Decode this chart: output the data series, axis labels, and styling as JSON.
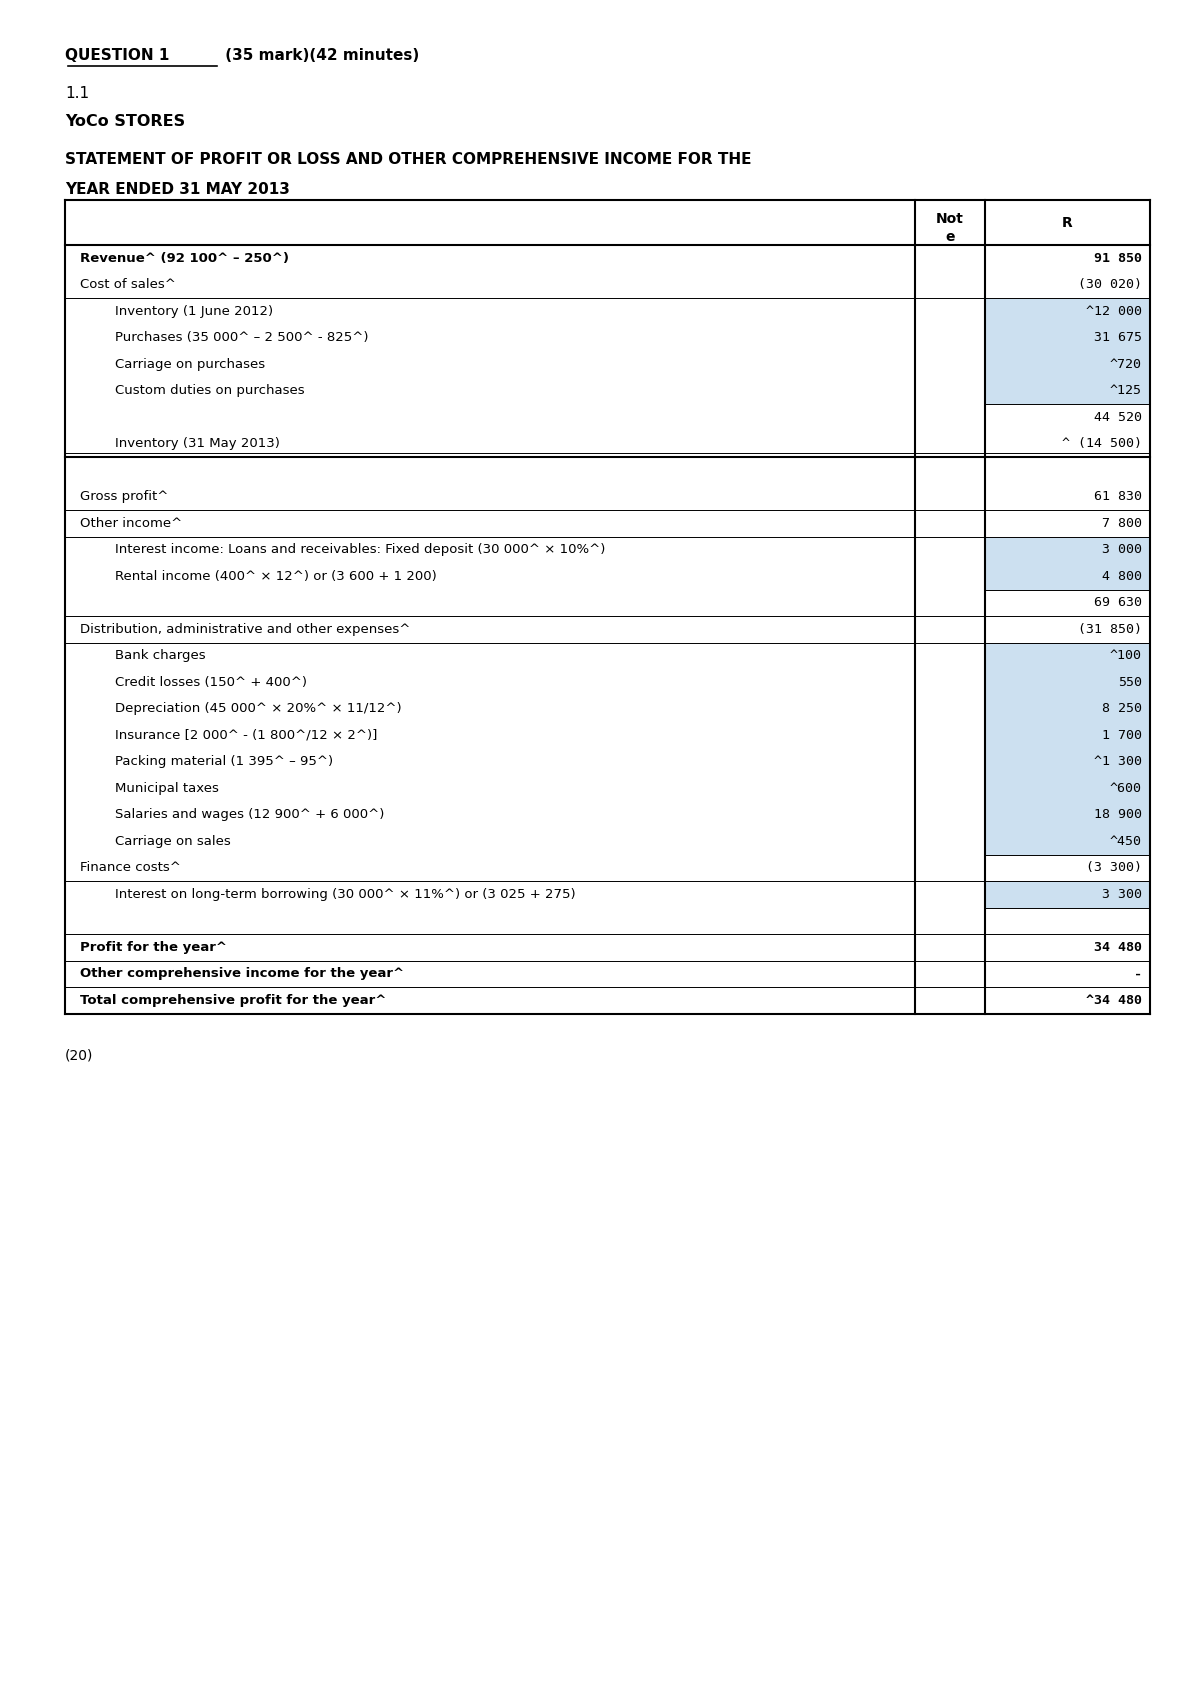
{
  "title_question": "QUESTION 1 (35 mark)(42 minutes)",
  "subtitle1": "1.1",
  "subtitle2": "YoCo STORES",
  "statement_title": "STATEMENT OF PROFIT OR LOSS AND OTHER COMPREHENSIVE INCOME FOR THE\nYEAR ENDED 31 MAY 2013",
  "col_header_note": "Not\ne",
  "col_header_r": "R",
  "footer_note": "(20)",
  "bg_color": "#ffffff",
  "highlight_color": "#cce0f0",
  "rows": [
    {
      "label": "Revenue^ (92 100^ – 250^)",
      "value": "91 850",
      "indent": 0,
      "bold": true,
      "highlight": false,
      "value_highlight": false
    },
    {
      "label": "Cost of sales^",
      "value": "(30 020)",
      "indent": 0,
      "bold": false,
      "highlight": false,
      "value_highlight": false
    },
    {
      "label": "Inventory (1 June 2012)",
      "value": "^12 000",
      "indent": 1,
      "bold": false,
      "highlight": true,
      "value_highlight": true
    },
    {
      "label": "Purchases (35 000^ – 2 500^ - 825^)",
      "value": "31 675",
      "indent": 1,
      "bold": false,
      "highlight": true,
      "value_highlight": true
    },
    {
      "label": "Carriage on purchases",
      "value": "^720",
      "indent": 1,
      "bold": false,
      "highlight": true,
      "value_highlight": true
    },
    {
      "label": "Custom duties on purchases",
      "value": "^125",
      "indent": 1,
      "bold": false,
      "highlight": true,
      "value_highlight": true
    },
    {
      "label": "",
      "value": "44 520",
      "indent": 1,
      "bold": false,
      "highlight": false,
      "value_highlight": false
    },
    {
      "label": "Inventory (31 May 2013)",
      "value": "^ (14 500)",
      "indent": 1,
      "bold": false,
      "highlight": false,
      "value_highlight": false
    },
    {
      "label": "",
      "value": "",
      "indent": 0,
      "bold": false,
      "highlight": false,
      "value_highlight": false
    },
    {
      "label": "Gross profit^",
      "value": "61 830",
      "indent": 0,
      "bold": false,
      "highlight": false,
      "value_highlight": false
    },
    {
      "label": "Other income^",
      "value": "7 800",
      "indent": 0,
      "bold": false,
      "highlight": false,
      "value_highlight": false
    },
    {
      "label": "Interest income: Loans and receivables: Fixed deposit (30 000^ × 10%^)",
      "value": "3 000",
      "indent": 1,
      "bold": false,
      "highlight": true,
      "value_highlight": true
    },
    {
      "label": "Rental income (400^ × 12^) or (3 600 + 1 200)",
      "value": "4 800",
      "indent": 1,
      "bold": false,
      "highlight": true,
      "value_highlight": true
    },
    {
      "label": "",
      "value": "69 630",
      "indent": 0,
      "bold": false,
      "highlight": false,
      "value_highlight": false
    },
    {
      "label": "Distribution, administrative and other expenses^",
      "value": "(31 850)",
      "indent": 0,
      "bold": false,
      "highlight": false,
      "value_highlight": false
    },
    {
      "label": "Bank charges",
      "value": "^100",
      "indent": 1,
      "bold": false,
      "highlight": true,
      "value_highlight": true
    },
    {
      "label": "Credit losses (150^ + 400^)",
      "value": "550",
      "indent": 1,
      "bold": false,
      "highlight": true,
      "value_highlight": true
    },
    {
      "label": "Depreciation (45 000^ × 20%^ × 11/12^)",
      "value": "8 250",
      "indent": 1,
      "bold": false,
      "highlight": true,
      "value_highlight": true
    },
    {
      "label": "Insurance [2 000^ - (1 800^/12 × 2^)]",
      "value": "1 700",
      "indent": 1,
      "bold": false,
      "highlight": true,
      "value_highlight": true
    },
    {
      "label": "Packing material (1 395^ – 95^)",
      "value": "^1 300",
      "indent": 1,
      "bold": false,
      "highlight": true,
      "value_highlight": true
    },
    {
      "label": "Municipal taxes",
      "value": "^600",
      "indent": 1,
      "bold": false,
      "highlight": true,
      "value_highlight": true
    },
    {
      "label": "Salaries and wages (12 900^ + 6 000^)",
      "value": "18 900",
      "indent": 1,
      "bold": false,
      "highlight": true,
      "value_highlight": true
    },
    {
      "label": "Carriage on sales",
      "value": "^450",
      "indent": 1,
      "bold": false,
      "highlight": true,
      "value_highlight": true
    },
    {
      "label": "Finance costs^",
      "value": "(3 300)",
      "indent": 0,
      "bold": false,
      "highlight": false,
      "value_highlight": false
    },
    {
      "label": "Interest on long-term borrowing (30 000^ × 11%^) or (3 025 + 275)",
      "value": "3 300",
      "indent": 1,
      "bold": false,
      "highlight": true,
      "value_highlight": true
    },
    {
      "label": "",
      "value": "",
      "indent": 0,
      "bold": false,
      "highlight": false,
      "value_highlight": false
    },
    {
      "label": "Profit for the year^",
      "value": "34 480",
      "indent": 0,
      "bold": true,
      "highlight": false,
      "value_highlight": false
    },
    {
      "label": "Other comprehensive income for the year^",
      "value": "-",
      "indent": 0,
      "bold": true,
      "highlight": false,
      "value_highlight": false
    },
    {
      "label": "Total comprehensive profit for the year^",
      "value": "^34 480",
      "indent": 0,
      "bold": true,
      "highlight": false,
      "value_highlight": false
    }
  ]
}
